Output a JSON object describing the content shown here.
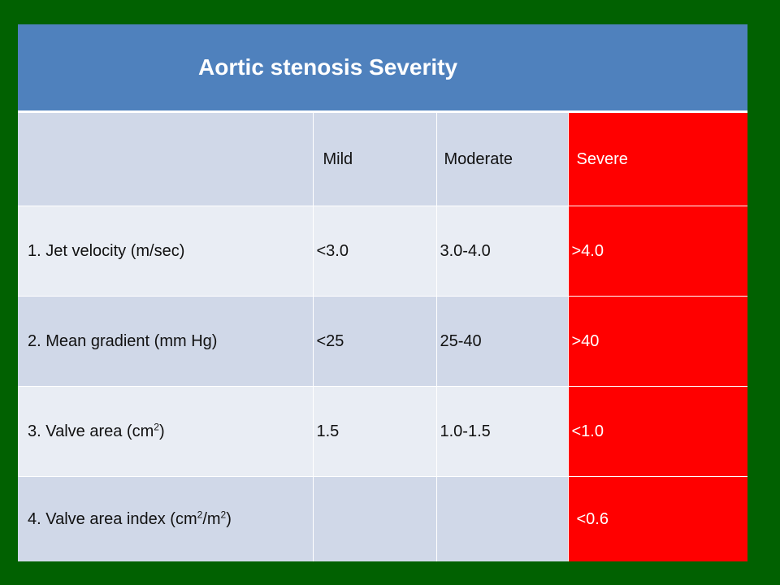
{
  "slide": {
    "title": "Aortic stenosis  Severity"
  },
  "table": {
    "headers": {
      "label": "",
      "mild": "Mild",
      "moderate": "Moderate",
      "severe": "Severe"
    },
    "rows": [
      {
        "label": "1. Jet velocity (m/sec)",
        "mild": "<3.0",
        "moderate": "3.0-4.0",
        "severe": ">4.0"
      },
      {
        "label": "2. Mean gradient (mm Hg)",
        "mild": "<25",
        "moderate": "25-40",
        "severe": ">40"
      },
      {
        "label_prefix": "3. Valve area (cm",
        "label_sup": "2",
        "label_suffix": ")",
        "mild": "1.5",
        "moderate": "1.0-1.5",
        "severe": "<1.0"
      },
      {
        "label_prefix": "4. Valve area index (cm",
        "label_sup": "2",
        "label_mid": "/m",
        "label_sup2": "2",
        "label_suffix": ")",
        "mild": "",
        "moderate": "",
        "severe": "<0.6"
      }
    ]
  },
  "colors": {
    "background": "#016101",
    "title_fill": "#4f81bd",
    "severe_fill": "#ff0000",
    "band_dark": "#d0d8e8",
    "band_light": "#e9edf4"
  }
}
